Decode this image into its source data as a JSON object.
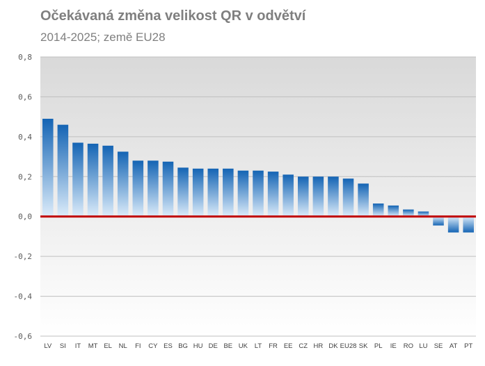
{
  "chart_data": {
    "type": "bar",
    "title": "Očekávaná změna velikost QR v odvětví",
    "subtitle": "2014-2025; země EU28",
    "xlabel": "",
    "ylabel": "",
    "ylim": [
      -0.6,
      0.8
    ],
    "yticks": [
      0.8,
      0.6,
      0.4,
      0.2,
      0.0,
      -0.2,
      -0.4,
      -0.6
    ],
    "ytick_labels": [
      "0,8",
      "0,6",
      "0,4",
      "0,2",
      "0,0",
      "-0,2",
      "-0,4",
      "-0,6"
    ],
    "grid": true,
    "legend": "none",
    "categories": [
      "LV",
      "SI",
      "IT",
      "MT",
      "EL",
      "NL",
      "FI",
      "CY",
      "ES",
      "BG",
      "HU",
      "DE",
      "BE",
      "UK",
      "LT",
      "FR",
      "EE",
      "CZ",
      "HR",
      "DK",
      "EU28",
      "SK",
      "PL",
      "IE",
      "RO",
      "LU",
      "SE",
      "AT",
      "PT"
    ],
    "values": [
      0.49,
      0.46,
      0.37,
      0.365,
      0.355,
      0.325,
      0.28,
      0.28,
      0.275,
      0.245,
      0.24,
      0.24,
      0.24,
      0.23,
      0.23,
      0.225,
      0.21,
      0.2,
      0.2,
      0.2,
      0.19,
      0.165,
      0.065,
      0.055,
      0.035,
      0.025,
      -0.045,
      -0.08,
      -0.08
    ],
    "colors": {
      "bar_top": "#1464b4",
      "bar_bottom": "#dcecfa",
      "zero_line": "#c00000",
      "plot_bg_top": "#d9d9d9",
      "plot_bg_bottom": "#ffffff",
      "grid": "#bfbfbf"
    }
  }
}
